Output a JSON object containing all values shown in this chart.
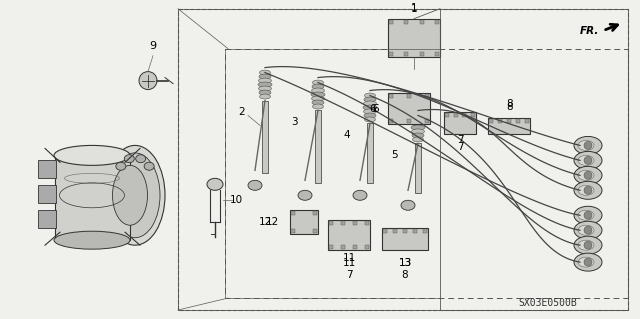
{
  "bg_color": "#f0f0ec",
  "border_color": "#444444",
  "text_color": "#111111",
  "diagram_code": "SX03E0500B",
  "fr_label": "FR.",
  "lc": "#333333",
  "fc": "#e0e0dc",
  "fc2": "#c8c8c4"
}
